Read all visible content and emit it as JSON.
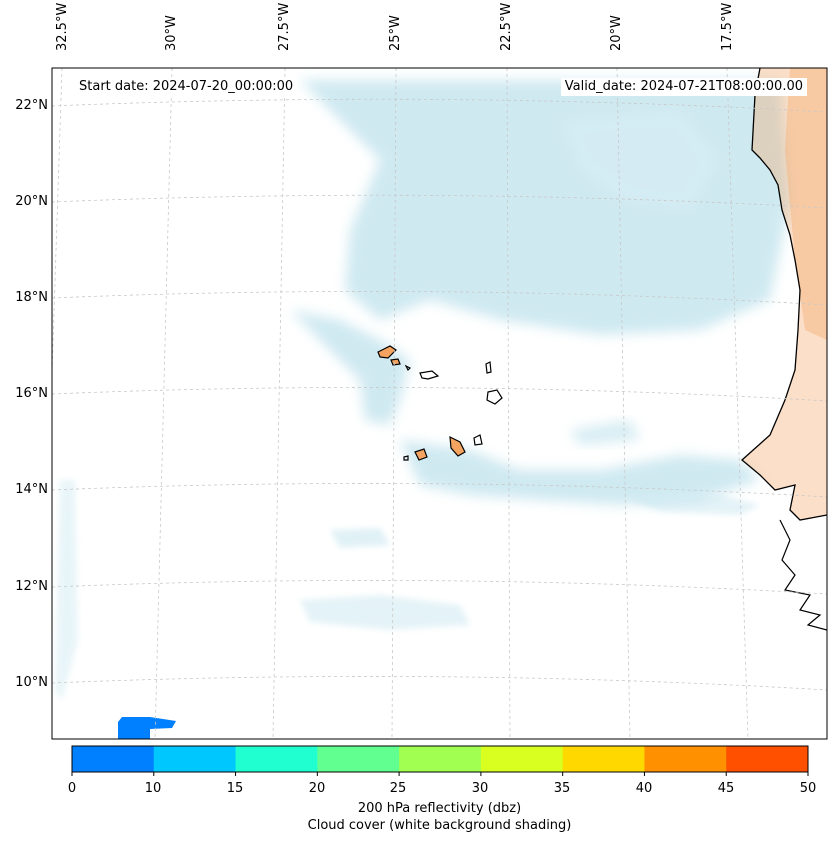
{
  "header": {
    "start_date": "Start date: 2024-07-20_00:00:00",
    "valid_date": "Valid_date: 2024-07-21T08:00:00.00"
  },
  "longitude_labels": [
    "32.5°W",
    "30°W",
    "27.5°W",
    "25°W",
    "22.5°W",
    "20°W",
    "17.5°W"
  ],
  "latitude_labels": [
    "22°N",
    "20°N",
    "18°N",
    "16°N",
    "14°N",
    "12°N",
    "10°N"
  ],
  "colorbar": {
    "ticks": [
      "0",
      "10",
      "15",
      "20",
      "25",
      "30",
      "35",
      "40",
      "45",
      "50"
    ],
    "colors": [
      "#0080ff",
      "#00c8ff",
      "#20ffd0",
      "#60ff90",
      "#a0ff50",
      "#d8ff20",
      "#ffd800",
      "#ff9000",
      "#ff5000"
    ],
    "label_line1": "200 hPa reflectivity (dbz)",
    "label_line2": "Cloud cover (white background shading)"
  },
  "colors": {
    "cloud": "#a8d8e6",
    "land": "#f4a460",
    "coast": "#000000",
    "grid": "#c8c8c8"
  },
  "chart_data": {
    "type": "map",
    "title": "200 hPa reflectivity (dbz) / Cloud cover",
    "lon_ticks": [
      -32.5,
      -30,
      -27.5,
      -25,
      -22.5,
      -20,
      -17.5
    ],
    "lat_ticks": [
      22,
      20,
      18,
      16,
      14,
      12,
      10
    ],
    "colorbar_levels": [
      0,
      10,
      15,
      20,
      25,
      30,
      35,
      40,
      45,
      50
    ],
    "colorbar_label": "200 hPa reflectivity (dbz)"
  }
}
